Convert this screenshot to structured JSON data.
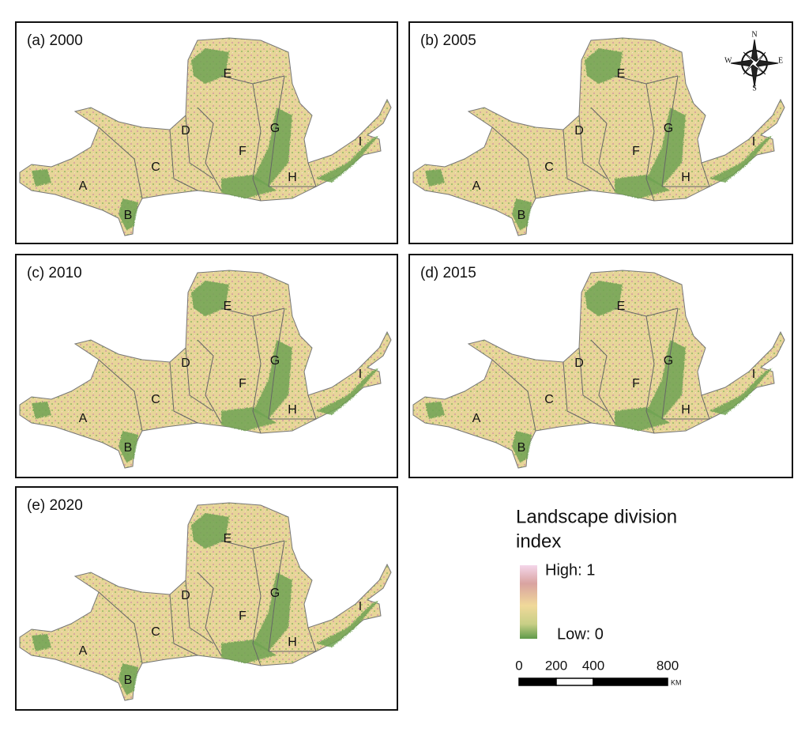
{
  "panels": [
    {
      "title": "(a) 2000",
      "regions": [
        "A",
        "B",
        "C",
        "D",
        "E",
        "F",
        "G",
        "H",
        "I"
      ]
    },
    {
      "title": "(b) 2005",
      "regions": [
        "A",
        "B",
        "C",
        "D",
        "E",
        "F",
        "G",
        "H",
        "I"
      ]
    },
    {
      "title": "(c) 2010",
      "regions": [
        "A",
        "B",
        "C",
        "D",
        "E",
        "F",
        "G",
        "H",
        "I"
      ]
    },
    {
      "title": "(d) 2015",
      "regions": [
        "A",
        "B",
        "C",
        "D",
        "E",
        "F",
        "G",
        "H",
        "I"
      ]
    },
    {
      "title": "(e) 2020",
      "regions": [
        "A",
        "B",
        "C",
        "D",
        "E",
        "F",
        "G",
        "H",
        "I"
      ]
    }
  ],
  "compass": {
    "n": "N",
    "s": "S",
    "e": "E",
    "w": "W"
  },
  "legend": {
    "title_lines": [
      "Landscape division",
      "index"
    ],
    "high": "High: 1",
    "low": "Low: 0"
  },
  "scale_bar": {
    "ticks": [
      0,
      200,
      400,
      800
    ],
    "unit": "KM"
  }
}
